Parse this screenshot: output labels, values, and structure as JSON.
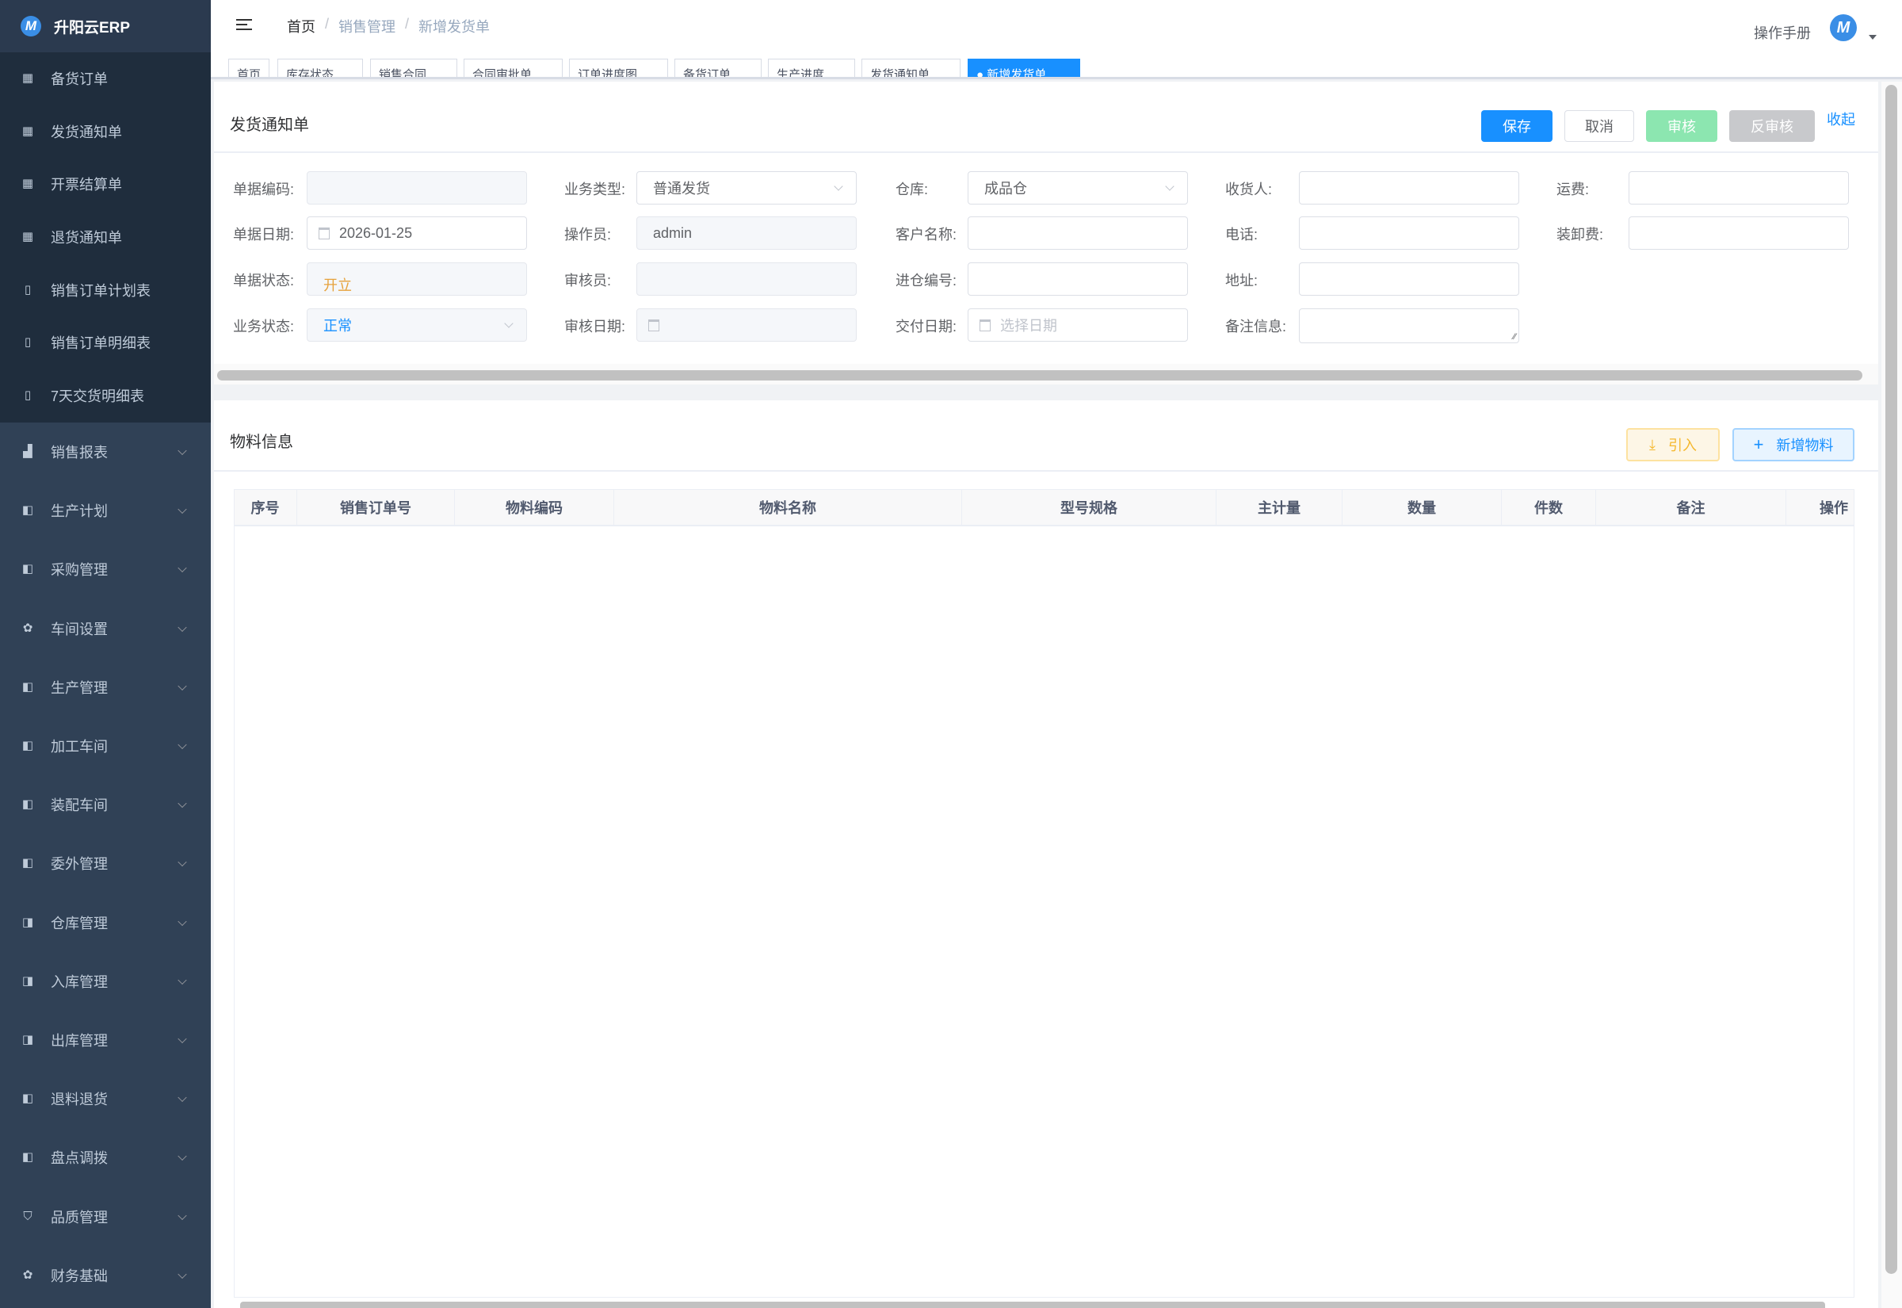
{
  "app": {
    "name": "升阳云ERP"
  },
  "sidebar": {
    "items": [
      {
        "label": "备货订单",
        "icon": "table-icon",
        "sub": true
      },
      {
        "label": "发货通知单",
        "icon": "table-icon",
        "sub": true
      },
      {
        "label": "开票结算单",
        "icon": "table-icon",
        "sub": true
      },
      {
        "label": "退货通知单",
        "icon": "table-icon",
        "sub": true
      },
      {
        "label": "销售订单计划表",
        "icon": "book-icon",
        "sub": true
      },
      {
        "label": "销售订单明细表",
        "icon": "book-icon",
        "sub": true
      },
      {
        "label": "7天交货明细表",
        "icon": "book-icon",
        "sub": true
      },
      {
        "label": "销售报表",
        "icon": "bar-chart-icon"
      },
      {
        "label": "生产计划",
        "icon": "copy-icon"
      },
      {
        "label": "采购管理",
        "icon": "copy-icon"
      },
      {
        "label": "车间设置",
        "icon": "gear-icon"
      },
      {
        "label": "生产管理",
        "icon": "copy-icon"
      },
      {
        "label": "加工车间",
        "icon": "copy-icon"
      },
      {
        "label": "装配车间",
        "icon": "copy-icon"
      },
      {
        "label": "委外管理",
        "icon": "copy-icon"
      },
      {
        "label": "仓库管理",
        "icon": "warehouse-icon"
      },
      {
        "label": "入库管理",
        "icon": "warehouse-icon"
      },
      {
        "label": "出库管理",
        "icon": "warehouse-icon"
      },
      {
        "label": "退料退货",
        "icon": "copy-icon"
      },
      {
        "label": "盘点调拨",
        "icon": "copy-icon"
      },
      {
        "label": "品质管理",
        "icon": "shield-icon"
      },
      {
        "label": "财务基础",
        "icon": "gear-icon"
      }
    ]
  },
  "header": {
    "breadcrumb": [
      "首页",
      "销售管理",
      "新增发货单"
    ],
    "manual": "操作手册"
  },
  "tabs": [
    {
      "label": "首页"
    },
    {
      "label": "库存状态"
    },
    {
      "label": "销售合同"
    },
    {
      "label": "合同审批单"
    },
    {
      "label": "订单进度图"
    },
    {
      "label": "备货订单"
    },
    {
      "label": "生产进度"
    },
    {
      "label": "发货通知单"
    },
    {
      "label": "● 新增发货单",
      "active": true
    }
  ],
  "form": {
    "title": "发货通知单",
    "buttons": {
      "save": "保存",
      "cancel": "取消",
      "audit": "审核",
      "unaudit": "反审核",
      "collapse": "收起"
    },
    "fields": [
      {
        "label": "单据编码:",
        "value": "",
        "disabled": true
      },
      {
        "label": "单据日期:",
        "value": "2026-01-25",
        "type": "date"
      },
      {
        "label": "单据状态:",
        "value": "开立",
        "disabled": true,
        "color": "#e6a23c"
      },
      {
        "label": "业务状态:",
        "value": "正常",
        "type": "select",
        "disabled": true,
        "color": "#1890ff"
      },
      {
        "label": "业务类型:",
        "value": "普通发货",
        "type": "select"
      },
      {
        "label": "操作员:",
        "value": "admin",
        "disabled": true
      },
      {
        "label": "审核员:",
        "value": "",
        "disabled": true
      },
      {
        "label": "审核日期:",
        "value": "",
        "type": "date",
        "disabled": true
      },
      {
        "label": "仓库:",
        "value": "成品仓",
        "type": "select"
      },
      {
        "label": "客户名称:",
        "value": ""
      },
      {
        "label": "进仓编号:",
        "value": ""
      },
      {
        "label": "交付日期:",
        "value": "",
        "placeholder": "选择日期",
        "type": "date"
      },
      {
        "label": "收货人:",
        "value": ""
      },
      {
        "label": "电话:",
        "value": ""
      },
      {
        "label": "地址:",
        "value": ""
      },
      {
        "label": "备注信息:",
        "value": "",
        "type": "textarea"
      },
      {
        "label": "运费:",
        "value": ""
      },
      {
        "label": "装卸费:",
        "value": ""
      }
    ]
  },
  "materials": {
    "title": "物料信息",
    "import": "引入",
    "add": "新增物料",
    "columns": [
      "序号",
      "销售订单号",
      "物料编码",
      "物料名称",
      "型号规格",
      "主计量",
      "数量",
      "件数",
      "备注",
      "操作"
    ],
    "rows": []
  },
  "colors": {
    "primary": "#1890ff",
    "success_disabled": "#8ce6b0",
    "sidebar": "#304156"
  }
}
